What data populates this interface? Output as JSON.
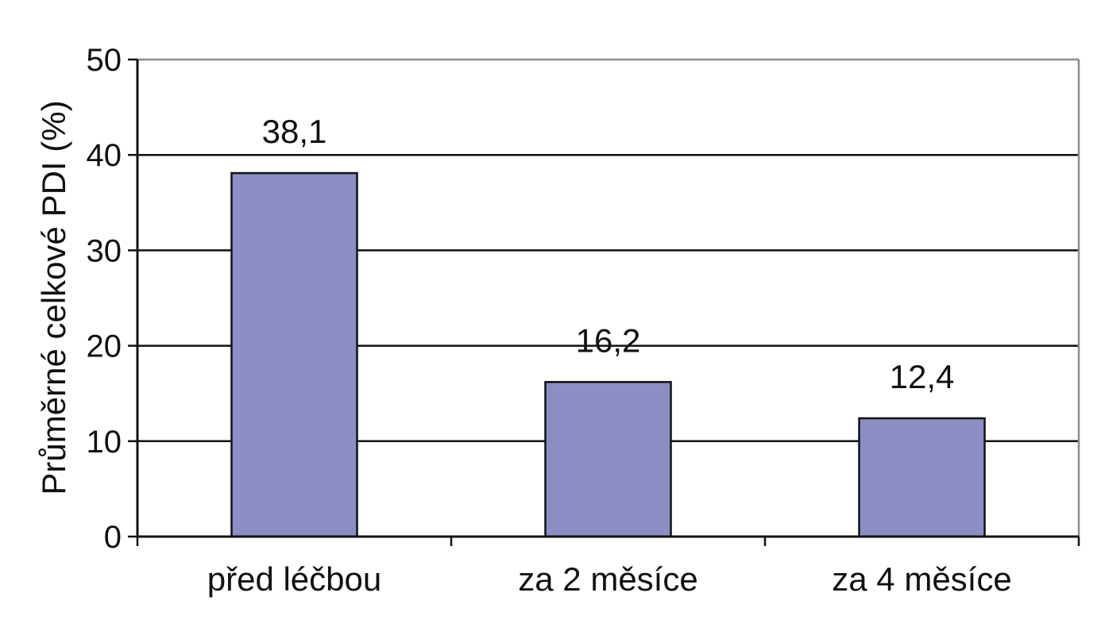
{
  "chart_data": {
    "type": "bar",
    "title": "",
    "xlabel": "",
    "ylabel": "Průměrné celkové PDI (%)",
    "categories": [
      "před léčbou",
      "za 2 měsíce",
      "za 4 měsíce"
    ],
    "values": [
      38.1,
      16.2,
      12.4
    ],
    "value_labels": [
      "38,1",
      "16,2",
      "12,4"
    ],
    "yticks": [
      0,
      10,
      20,
      30,
      40,
      50
    ],
    "ytick_labels": [
      "0",
      "10",
      "20",
      "30",
      "40",
      "50"
    ],
    "ylim": [
      0,
      50
    ],
    "grid": true,
    "legend": "none",
    "colors": {
      "bar": "#8b8fc4",
      "bar_stroke": "#111111",
      "grid": "#111111",
      "frame": "#8c8c8c"
    }
  }
}
